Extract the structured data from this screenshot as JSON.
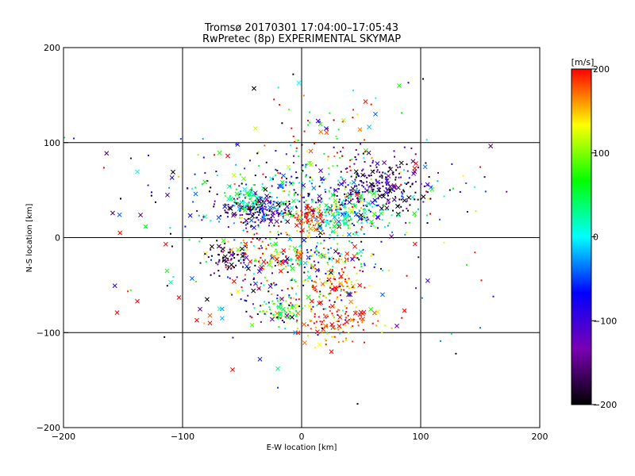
{
  "chart_data": {
    "type": "scatter",
    "title": "Tromsø 20170301 17:04:00–17:05:43",
    "subtitle": "RwPretec (8p) EXPERIMENTAL SKYMAP",
    "xlabel": "E-W location [km]",
    "ylabel": "N-S location [km]",
    "xlim": [
      -200,
      200
    ],
    "ylim": [
      -200,
      200
    ],
    "xticks": [
      -200,
      -100,
      0,
      100,
      200
    ],
    "yticks": [
      -200,
      -100,
      0,
      100,
      200
    ],
    "xtick_labels": [
      "−200",
      "−100",
      "0",
      "100",
      "200"
    ],
    "ytick_labels": [
      "−200",
      "−100",
      "0",
      "100",
      "200"
    ],
    "grid_lines": [
      -100,
      0,
      100
    ],
    "colorbar": {
      "label": "[m/s]",
      "range": [
        -200,
        200
      ],
      "ticks": [
        200,
        100,
        0,
        -100,
        -200
      ],
      "tick_labels": [
        "200",
        "100",
        "0",
        "−100",
        "−200"
      ],
      "colors": [
        "#000000",
        "#7a00b4",
        "#0000ff",
        "#00ffff",
        "#00ff00",
        "#ffff00",
        "#ff0000"
      ]
    },
    "clusters": [
      {
        "x": 5,
        "y": 45,
        "sx": 55,
        "sy": 22,
        "n": 420,
        "v": -40,
        "vs": 120
      },
      {
        "x": 70,
        "y": 55,
        "sx": 18,
        "sy": 18,
        "n": 170,
        "v": -170,
        "vs": 50
      },
      {
        "x": -35,
        "y": 28,
        "sx": 14,
        "sy": 8,
        "n": 150,
        "v": -150,
        "vs": 80
      },
      {
        "x": 35,
        "y": 25,
        "sx": 18,
        "sy": 10,
        "n": 180,
        "v": 20,
        "vs": 60
      },
      {
        "x": -45,
        "y": 42,
        "sx": 7,
        "sy": 6,
        "n": 55,
        "v": 30,
        "vs": 30
      },
      {
        "x": 5,
        "y": 20,
        "sx": 8,
        "sy": 7,
        "n": 70,
        "v": 190,
        "vs": 30
      },
      {
        "x": -25,
        "y": -20,
        "sx": 22,
        "sy": 12,
        "n": 120,
        "v": 150,
        "vs": 80
      },
      {
        "x": -60,
        "y": -22,
        "sx": 10,
        "sy": 8,
        "n": 60,
        "v": -180,
        "vs": 40
      },
      {
        "x": 30,
        "y": -50,
        "sx": 12,
        "sy": 8,
        "n": 80,
        "v": 170,
        "vs": 40
      },
      {
        "x": 20,
        "y": -20,
        "sx": 25,
        "sy": 10,
        "n": 90,
        "v": -20,
        "vs": 120
      },
      {
        "x": -15,
        "y": -78,
        "sx": 8,
        "sy": 6,
        "n": 70,
        "v": 80,
        "vs": 40
      },
      {
        "x": 30,
        "y": -90,
        "sx": 20,
        "sy": 10,
        "n": 110,
        "v": 180,
        "vs": 40
      },
      {
        "x": -25,
        "y": -60,
        "sx": 25,
        "sy": 20,
        "n": 70,
        "v": -120,
        "vs": 80
      },
      {
        "x": 0,
        "y": -45,
        "sx": 40,
        "sy": 28,
        "n": 110,
        "v": 60,
        "vs": 160
      },
      {
        "x": 15,
        "y": 110,
        "sx": 30,
        "sy": 22,
        "n": 60,
        "v": 150,
        "vs": 100
      },
      {
        "x": 0,
        "y": 0,
        "sx": 80,
        "sy": 70,
        "n": 120,
        "v": 0,
        "vs": 200
      }
    ],
    "outliers": [
      {
        "x": -40,
        "y": 157,
        "v": -200,
        "m": "x"
      },
      {
        "x": 82,
        "y": 160,
        "v": 70,
        "m": "x"
      },
      {
        "x": 102,
        "y": 167,
        "v": -200,
        "m": "d"
      },
      {
        "x": -108,
        "y": 69,
        "v": -200,
        "m": "x"
      },
      {
        "x": -152,
        "y": 41,
        "v": -200,
        "m": "d"
      },
      {
        "x": -110,
        "y": 4,
        "v": -200,
        "m": "d"
      },
      {
        "x": -113,
        "y": -35,
        "v": 60,
        "m": "x"
      },
      {
        "x": -155,
        "y": -79,
        "v": 200,
        "m": "x"
      },
      {
        "x": -138,
        "y": -67,
        "v": 200,
        "m": "x"
      },
      {
        "x": -103,
        "y": -63,
        "v": 200,
        "m": "x"
      },
      {
        "x": -110,
        "y": -47,
        "v": 20,
        "m": "x"
      },
      {
        "x": -92,
        "y": -43,
        "v": -40,
        "m": "x"
      },
      {
        "x": -88,
        "y": -87,
        "v": 200,
        "m": "x"
      },
      {
        "x": -77,
        "y": -90,
        "v": 200,
        "m": "x"
      },
      {
        "x": -77,
        "y": -82,
        "v": 180,
        "m": "x"
      },
      {
        "x": -58,
        "y": -139,
        "v": 200,
        "m": "x"
      },
      {
        "x": -35,
        "y": -128,
        "v": -60,
        "m": "x"
      },
      {
        "x": -20,
        "y": -138,
        "v": 30,
        "m": "x"
      },
      {
        "x": -20,
        "y": -158,
        "v": -50,
        "m": "d"
      },
      {
        "x": 47,
        "y": -175,
        "v": -200,
        "m": "d"
      },
      {
        "x": 150,
        "y": -95,
        "v": -40,
        "m": "d"
      },
      {
        "x": 161,
        "y": -62,
        "v": -100,
        "m": "d"
      },
      {
        "x": 151,
        "y": -45,
        "v": 200,
        "m": "d"
      },
      {
        "x": 116,
        "y": 19,
        "v": -40,
        "m": "d"
      },
      {
        "x": 108,
        "y": 25,
        "v": 200,
        "m": "d"
      },
      {
        "x": 96,
        "y": 78,
        "v": 200,
        "m": "x"
      },
      {
        "x": 95,
        "y": 73,
        "v": 200,
        "m": "x"
      },
      {
        "x": -62,
        "y": 86,
        "v": 200,
        "m": "x"
      },
      {
        "x": -89,
        "y": 46,
        "v": -40,
        "m": "x"
      },
      {
        "x": 62,
        "y": 130,
        "v": -40,
        "m": "x"
      },
      {
        "x": 68,
        "y": -60,
        "v": -40,
        "m": "x"
      },
      {
        "x": 80,
        "y": -93,
        "v": -120,
        "m": "x"
      },
      {
        "x": 25,
        "y": -120,
        "v": 200,
        "m": "x"
      }
    ]
  }
}
